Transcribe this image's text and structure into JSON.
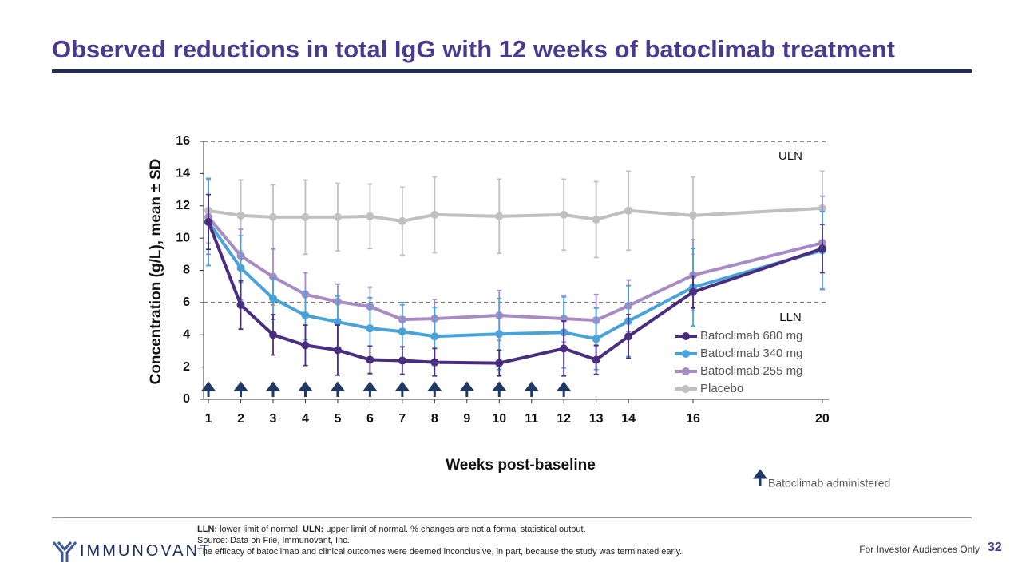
{
  "title": "Observed reductions in total IgG with 12 weeks of batoclimab treatment",
  "chart_data": {
    "type": "line",
    "y_label": "Concentration (g/L), mean ± SD",
    "x_label": "Weeks post-baseline",
    "x": [
      1,
      2,
      3,
      4,
      5,
      6,
      7,
      8,
      10,
      12,
      13,
      14,
      16,
      20
    ],
    "xlim": [
      0.85,
      20.2
    ],
    "xticks": [
      1,
      2,
      3,
      4,
      5,
      6,
      7,
      8,
      9,
      10,
      11,
      12,
      13,
      14,
      16,
      20
    ],
    "ylim": [
      0,
      16
    ],
    "yticks": [
      0,
      2,
      4,
      6,
      8,
      10,
      12,
      14,
      16
    ],
    "legend": "lower right",
    "series": [
      {
        "name": "Batoclimab 680 mg",
        "color": "#4b2d7f",
        "values": [
          11.0,
          5.85,
          4.0,
          3.35,
          3.05,
          2.45,
          2.4,
          2.3,
          2.25,
          3.15,
          2.45,
          3.9,
          6.65,
          9.35
        ],
        "errors": [
          1.7,
          1.5,
          1.25,
          1.25,
          1.55,
          0.85,
          0.85,
          0.85,
          0.8,
          1.7,
          0.9,
          1.35,
          1.0,
          1.5
        ]
      },
      {
        "name": "Batoclimab 340 mg",
        "color": "#4aa3d8",
        "values": [
          11.0,
          8.15,
          6.25,
          5.2,
          4.8,
          4.4,
          4.2,
          3.9,
          4.05,
          4.15,
          3.75,
          4.85,
          6.95,
          9.25
        ],
        "errors": [
          2.7,
          2.0,
          1.3,
          1.5,
          1.6,
          1.9,
          1.8,
          1.8,
          2.2,
          2.2,
          1.9,
          2.2,
          2.4,
          2.4
        ]
      },
      {
        "name": "Batoclimab 255 mg",
        "color": "#a88bc4",
        "values": [
          11.3,
          8.9,
          7.6,
          6.5,
          6.05,
          5.75,
          4.95,
          5.0,
          5.2,
          5.0,
          4.9,
          5.8,
          7.7,
          9.7
        ],
        "errors": [
          2.3,
          1.65,
          1.75,
          1.35,
          1.1,
          1.2,
          0.9,
          1.2,
          1.55,
          1.45,
          1.6,
          1.6,
          2.2,
          2.9
        ]
      },
      {
        "name": "Placebo",
        "color": "#c0c0c0",
        "values": [
          11.7,
          11.4,
          11.3,
          11.3,
          11.3,
          11.35,
          11.05,
          11.45,
          11.35,
          11.45,
          11.15,
          11.7,
          11.4,
          11.85
        ],
        "errors": [
          2.0,
          2.2,
          2.0,
          2.3,
          2.1,
          2.0,
          2.1,
          2.35,
          2.3,
          2.2,
          2.35,
          2.45,
          2.4,
          2.3
        ]
      }
    ],
    "reference_lines": [
      {
        "value": 16,
        "label": "ULN"
      },
      {
        "value": 6,
        "label": "LLN"
      }
    ],
    "dosing_weeks": [
      1,
      2,
      3,
      4,
      5,
      6,
      7,
      8,
      9,
      10,
      11,
      12
    ],
    "dosing_label": "Batoclimab administered"
  },
  "footnotes": {
    "lln_term": "LLN:",
    "lln_def": "lower limit of normal.",
    "uln_term": "ULN:",
    "uln_def": "upper limit of normal. % changes are not a formal statistical output.",
    "source": "Source: Data on File, Immunovant, Inc.",
    "note": "The efficacy of batoclimab and clinical outcomes were deemed inconclusive, in part, because the study was terminated early."
  },
  "footer": {
    "logo": "IMMUNOVANT",
    "disclaimer": "For Investor Audiences Only",
    "page": "32"
  }
}
